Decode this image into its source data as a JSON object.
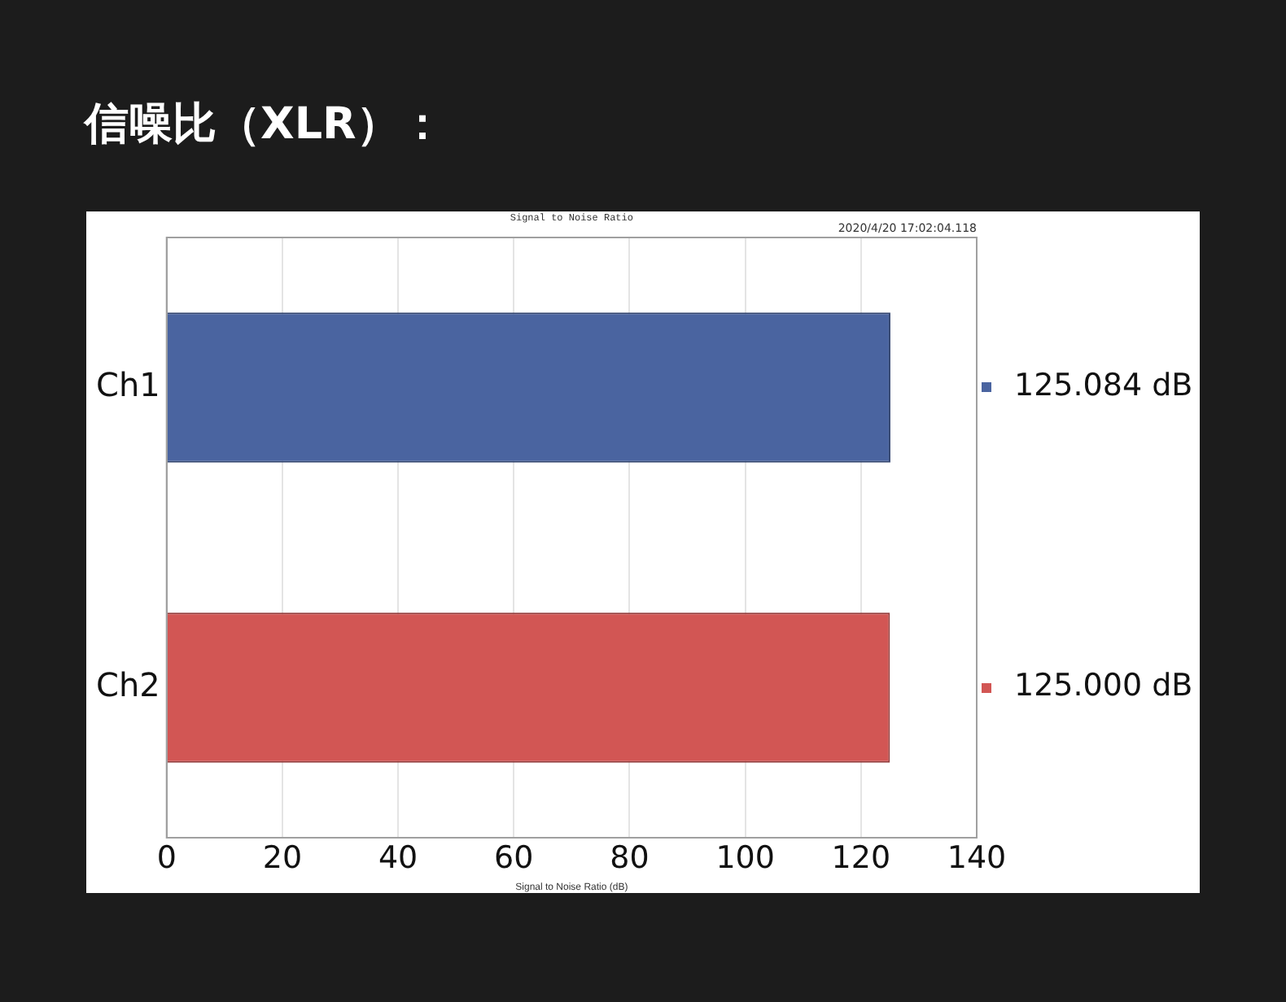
{
  "chart_data": {
    "type": "bar",
    "orientation": "horizontal",
    "title": "信噪比（XLR）：",
    "subtitle": "Signal to Noise Ratio",
    "xlabel": "Signal to Noise Ratio (dB)",
    "annotations": [
      "2020/4/20 17:02:04.118"
    ],
    "categories": [
      "Ch1",
      "Ch2"
    ],
    "values": [
      125.084,
      125.0
    ],
    "colors": [
      "#4a64a0",
      "#d25654"
    ],
    "value_labels": [
      "125.084 dB",
      "125.000 dB"
    ],
    "xlim": [
      0,
      140
    ],
    "xticks": [
      0,
      20,
      40,
      60,
      80,
      100,
      120,
      140
    ],
    "grid": "x",
    "legend": false
  }
}
